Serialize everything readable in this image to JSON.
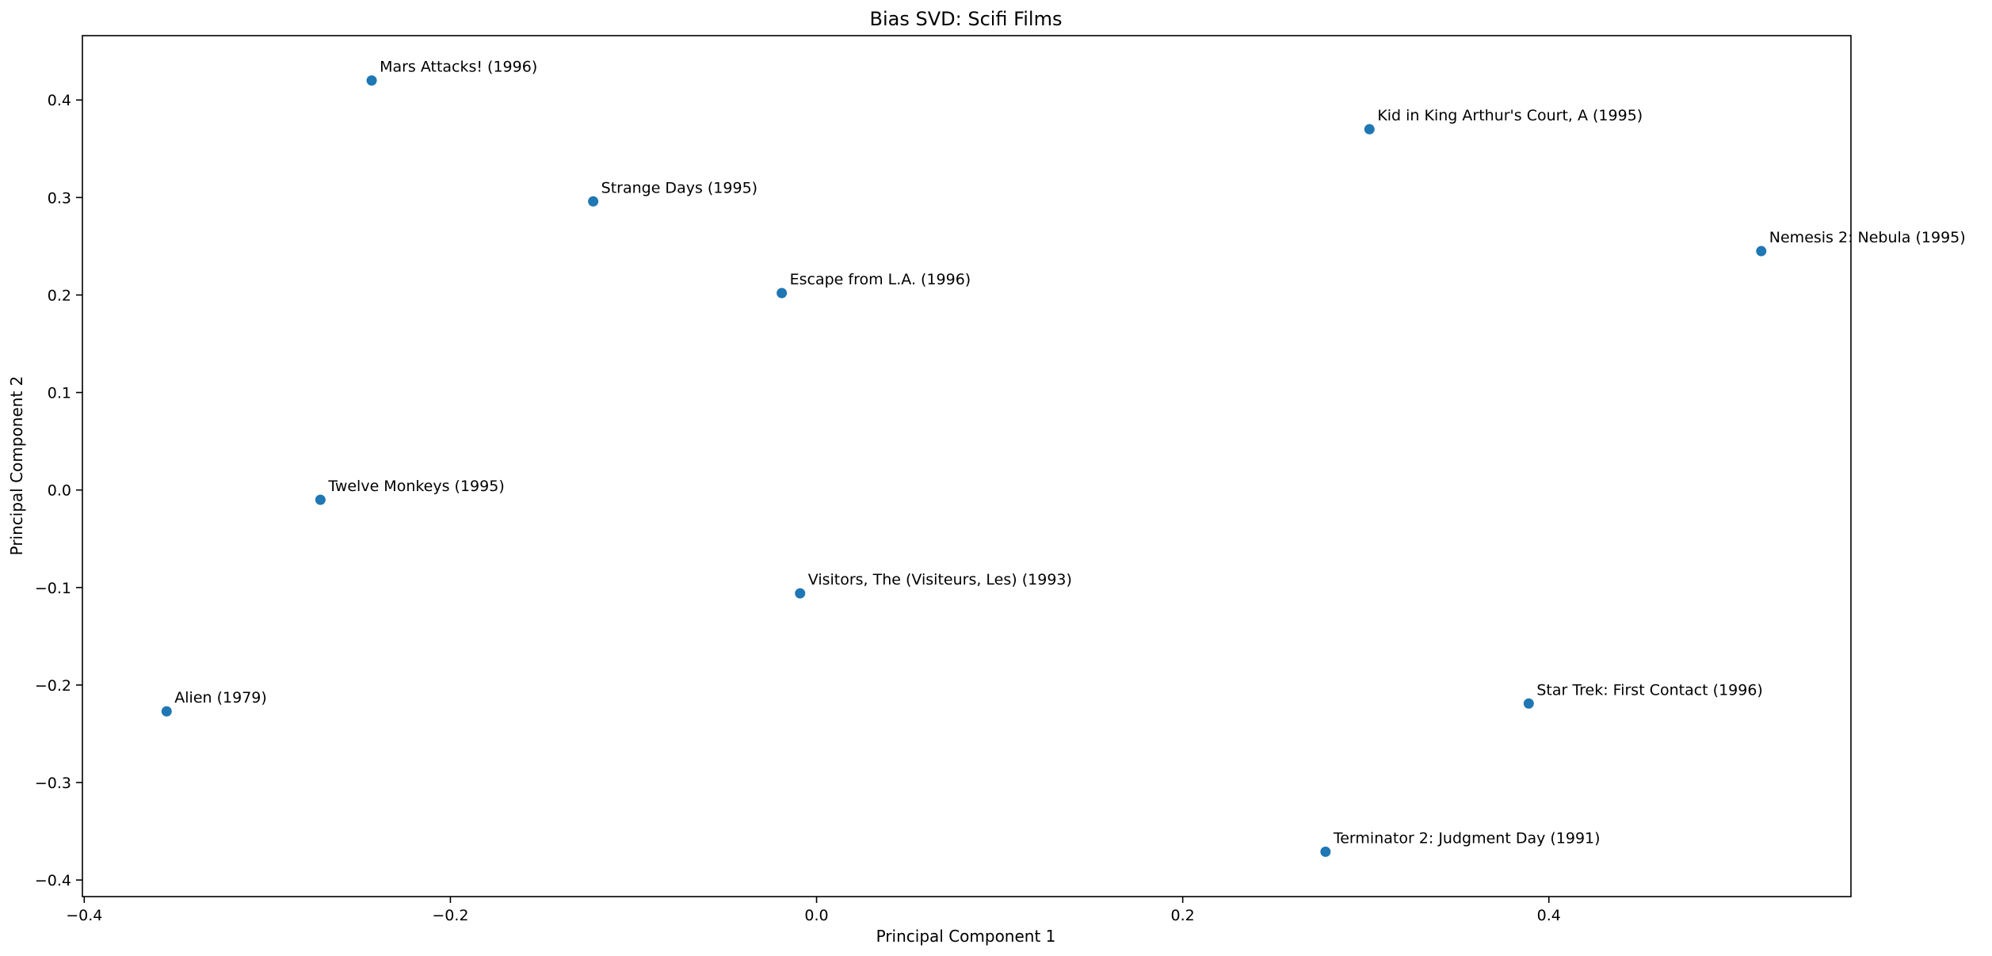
{
  "chart_data": {
    "type": "scatter",
    "title": "Bias SVD: Scifi Films",
    "xlabel": "Principal Component 1",
    "ylabel": "Principal Component 2",
    "xlim": [
      -0.401,
      0.565
    ],
    "ylim": [
      -0.417,
      0.466
    ],
    "xticks": [
      -0.4,
      -0.2,
      0.0,
      0.2,
      0.4
    ],
    "xtick_labels": [
      "−0.4",
      "−0.2",
      "0.0",
      "0.2",
      "0.4"
    ],
    "yticks": [
      -0.4,
      -0.3,
      -0.2,
      -0.1,
      0.0,
      0.1,
      0.2,
      0.3,
      0.4
    ],
    "ytick_labels": [
      "−0.4",
      "−0.3",
      "−0.2",
      "−0.1",
      "0.0",
      "0.1",
      "0.2",
      "0.3",
      "0.4"
    ],
    "grid": false,
    "marker_color": "#1f77b4",
    "points": [
      {
        "label": "Mars Attacks! (1996)",
        "x": -0.243,
        "y": 0.42
      },
      {
        "label": "Kid in King Arthur's Court, A (1995)",
        "x": 0.302,
        "y": 0.37
      },
      {
        "label": "Strange Days (1995)",
        "x": -0.122,
        "y": 0.296
      },
      {
        "label": "Nemesis 2: Nebula (1995)",
        "x": 0.516,
        "y": 0.245
      },
      {
        "label": "Escape from L.A. (1996)",
        "x": -0.019,
        "y": 0.202
      },
      {
        "label": "Twelve Monkeys (1995)",
        "x": -0.271,
        "y": -0.01
      },
      {
        "label": "Visitors, The (Visiteurs, Les) (1993)",
        "x": -0.009,
        "y": -0.106
      },
      {
        "label": "Alien (1979)",
        "x": -0.355,
        "y": -0.227
      },
      {
        "label": "Star Trek: First Contact (1996)",
        "x": 0.389,
        "y": -0.219
      },
      {
        "label": "Terminator 2: Judgment Day (1991)",
        "x": 0.278,
        "y": -0.371
      }
    ]
  }
}
